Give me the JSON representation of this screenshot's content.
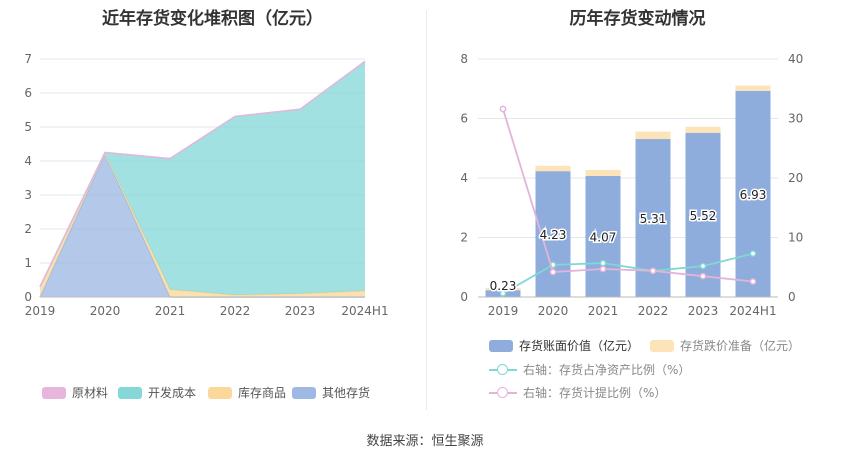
{
  "source": "数据来源：恒生聚源",
  "chart_data": [
    {
      "type": "area",
      "title": "近年存货变化堆积图（亿元）",
      "x": [
        "2019",
        "2020",
        "2021",
        "2022",
        "2023",
        "2024H1"
      ],
      "ylim": [
        0,
        7
      ],
      "yticks": [
        0,
        1,
        2,
        3,
        4,
        5,
        6,
        7
      ],
      "stacked": true,
      "legend_position": "bottom",
      "series": [
        {
          "name": "原材料",
          "color": "#e6b7db",
          "values": [
            0,
            0,
            0,
            0,
            0,
            0
          ]
        },
        {
          "name": "开发成本",
          "color": "#86d8d8",
          "values": [
            0,
            0.02,
            3.85,
            5.25,
            5.42,
            6.75
          ]
        },
        {
          "name": "库存商品",
          "color": "#fbd89a",
          "values": [
            0.3,
            0.02,
            0.22,
            0.06,
            0.1,
            0.18
          ]
        },
        {
          "name": "其他存货",
          "color": "#9fb9e3",
          "values": [
            0,
            4.21,
            0,
            0,
            0,
            0
          ]
        }
      ]
    },
    {
      "type": "bar",
      "title": "历年存货变动情况",
      "categories": [
        "2019",
        "2020",
        "2021",
        "2022",
        "2023",
        "2024H1"
      ],
      "ylim": [
        0,
        8
      ],
      "yticks": [
        0,
        2,
        4,
        6,
        8
      ],
      "y2lim": [
        0,
        40
      ],
      "y2ticks": [
        0,
        10,
        20,
        30,
        40
      ],
      "legend_position": "bottom",
      "series": [
        {
          "name": "存货账面价值（亿元）",
          "color": "#8eacdc",
          "axis": "left",
          "kind": "bar",
          "values": [
            0.23,
            4.23,
            4.07,
            5.31,
            5.52,
            6.93
          ],
          "labels": [
            "0.23",
            "4.23",
            "4.07",
            "5.31",
            "5.52",
            "6.93"
          ]
        },
        {
          "name": "存货跌价准备（亿元）",
          "color": "#fde3b8",
          "axis": "left",
          "kind": "bar",
          "values": [
            0.08,
            0.18,
            0.2,
            0.25,
            0.2,
            0.18
          ]
        },
        {
          "name": "右轴：存货占净资产比例（%）",
          "color": "#7fd8d4",
          "axis": "right",
          "kind": "line",
          "values": [
            0.6,
            5.4,
            5.7,
            4.4,
            5.2,
            7.3
          ]
        },
        {
          "name": "右轴：存货计提比例（%）",
          "color": "#e4b4d8",
          "axis": "right",
          "kind": "line",
          "values": [
            31.6,
            4.2,
            4.7,
            4.4,
            3.5,
            2.6
          ]
        }
      ]
    }
  ]
}
